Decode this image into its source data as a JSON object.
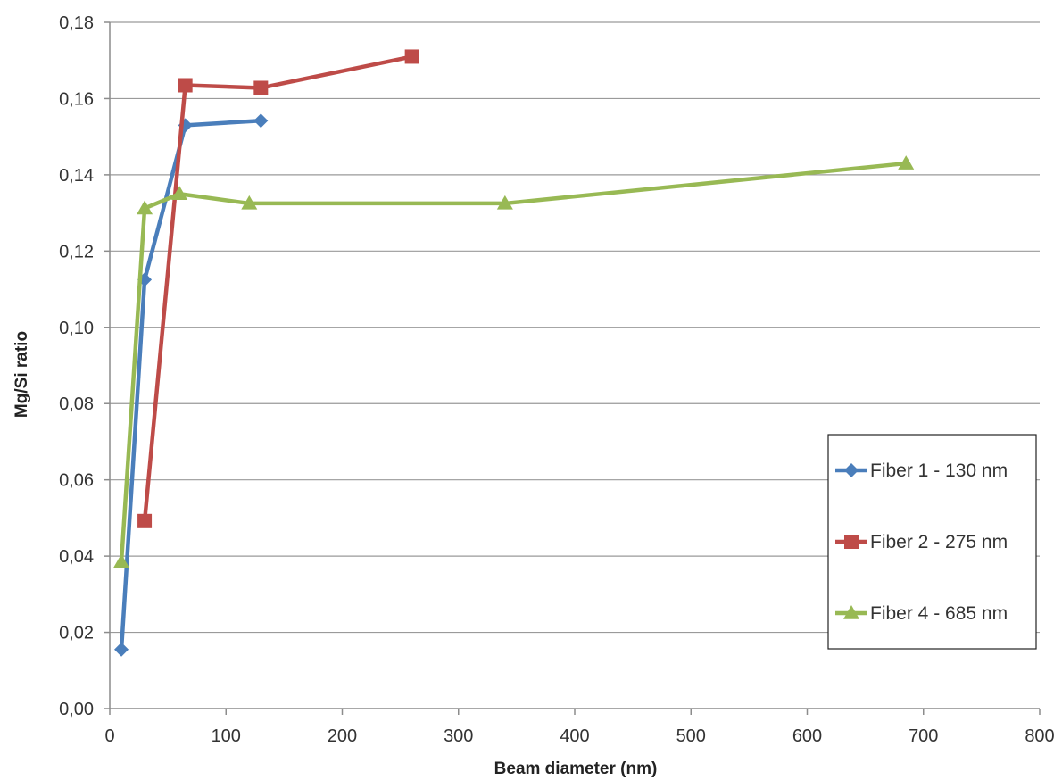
{
  "chart_data": {
    "type": "line",
    "title": "",
    "xlabel": "Beam diameter (nm)",
    "ylabel": "Mg/Si ratio",
    "xlim": [
      0,
      800
    ],
    "ylim": [
      0,
      0.18
    ],
    "x_ticks": [
      "0",
      "100",
      "200",
      "300",
      "400",
      "500",
      "600",
      "700",
      "800"
    ],
    "x_tick_values": [
      0,
      100,
      200,
      300,
      400,
      500,
      600,
      700,
      800
    ],
    "y_ticks": [
      "0,00",
      "0,02",
      "0,04",
      "0,06",
      "0,08",
      "0,10",
      "0,12",
      "0,14",
      "0,16",
      "0,18"
    ],
    "y_tick_values": [
      0,
      0.02,
      0.04,
      0.06,
      0.08,
      0.1,
      0.12,
      0.14,
      0.16,
      0.18
    ],
    "grid": "horizontal",
    "legend_position": "right",
    "series": [
      {
        "name": "Fiber 1 - 130 nm",
        "color": "#4a7ebb",
        "marker": "diamond",
        "points": [
          [
            10,
            0.0155
          ],
          [
            30,
            0.1125
          ],
          [
            65,
            0.153
          ],
          [
            130,
            0.1542
          ]
        ]
      },
      {
        "name": "Fiber 2 - 275 nm",
        "color": "#be4b48",
        "marker": "square",
        "points": [
          [
            30,
            0.0492
          ],
          [
            65,
            0.1635
          ],
          [
            130,
            0.1628
          ],
          [
            260,
            0.171
          ]
        ]
      },
      {
        "name": "Fiber 4 - 685 nm",
        "color": "#98b954",
        "marker": "triangle",
        "points": [
          [
            10,
            0.0385
          ],
          [
            30,
            0.1312
          ],
          [
            60,
            0.135
          ],
          [
            120,
            0.1325
          ],
          [
            340,
            0.1325
          ],
          [
            685,
            0.143
          ]
        ]
      }
    ]
  }
}
